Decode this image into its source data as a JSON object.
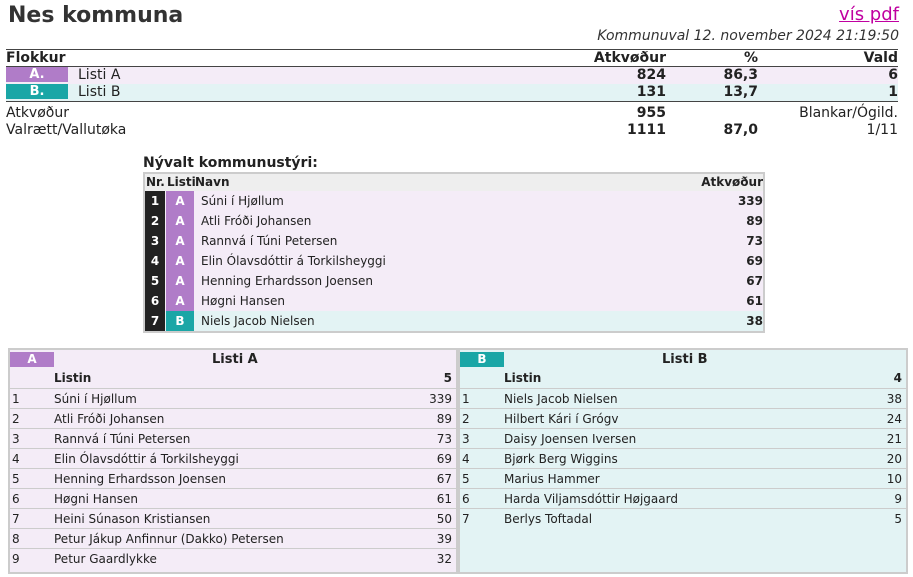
{
  "header": {
    "title": "Nes kommuna",
    "pdf_link": "vís pdf",
    "subtitle": "Kommunuval 12. november 2024 21:19:50"
  },
  "results": {
    "columns": [
      "Flokkur",
      "Atkvøður",
      "%",
      "Vald"
    ],
    "parties": [
      {
        "badge": "A.",
        "name": "Listi A",
        "votes": "824",
        "pct": "86,3",
        "seats": "6",
        "color": "#b07cc8"
      },
      {
        "badge": "B.",
        "name": "Listi B",
        "votes": "131",
        "pct": "13,7",
        "seats": "1",
        "color": "#1aa6a6"
      }
    ],
    "totals": {
      "votes_label": "Atkvøður",
      "votes": "955",
      "blank_label": "Blankar/Ógild.",
      "electorate_label": "Valrætt/Vallutøka",
      "electorate": "1111",
      "turnout": "87,0",
      "blank_ratio": "1/11"
    }
  },
  "council": {
    "title": "Nývalt kommunustýri:",
    "columns": [
      "Nr.",
      "Listi",
      "Navn",
      "Atkvøður"
    ],
    "members": [
      {
        "nr": "1",
        "list": "A",
        "name": "Súni í Hjøllum",
        "votes": "339"
      },
      {
        "nr": "2",
        "list": "A",
        "name": "Atli Fróði Johansen",
        "votes": "89"
      },
      {
        "nr": "3",
        "list": "A",
        "name": "Rannvá í Túni Petersen",
        "votes": "73"
      },
      {
        "nr": "4",
        "list": "A",
        "name": "Elin Ólavsdóttir á Torkilsheyggi",
        "votes": "69"
      },
      {
        "nr": "5",
        "list": "A",
        "name": "Henning Erhardsson Joensen",
        "votes": "67"
      },
      {
        "nr": "6",
        "list": "A",
        "name": "Høgni Hansen",
        "votes": "61"
      },
      {
        "nr": "7",
        "list": "B",
        "name": "Niels Jacob Nielsen",
        "votes": "38"
      }
    ]
  },
  "lists": [
    {
      "badge": "A",
      "title": "Listi A",
      "sub_label": "Listin",
      "sub_value": "5",
      "candidates": [
        {
          "n": "1",
          "name": "Súni í Hjøllum",
          "votes": "339"
        },
        {
          "n": "2",
          "name": "Atli Fróði Johansen",
          "votes": "89"
        },
        {
          "n": "3",
          "name": "Rannvá í Túni Petersen",
          "votes": "73"
        },
        {
          "n": "4",
          "name": "Elin Ólavsdóttir á Torkilsheyggi",
          "votes": "69"
        },
        {
          "n": "5",
          "name": "Henning Erhardsson Joensen",
          "votes": "67"
        },
        {
          "n": "6",
          "name": "Høgni Hansen",
          "votes": "61"
        },
        {
          "n": "7",
          "name": "Heini Súnason Kristiansen",
          "votes": "50"
        },
        {
          "n": "8",
          "name": "Petur Jákup Anfinnur (Dakko) Petersen",
          "votes": "39"
        },
        {
          "n": "9",
          "name": "Petur Gaardlykke",
          "votes": "32"
        }
      ]
    },
    {
      "badge": "B",
      "title": "Listi B",
      "sub_label": "Listin",
      "sub_value": "4",
      "candidates": [
        {
          "n": "1",
          "name": "Niels Jacob Nielsen",
          "votes": "38"
        },
        {
          "n": "2",
          "name": "Hilbert Kári í Grógv",
          "votes": "24"
        },
        {
          "n": "3",
          "name": "Daisy Joensen Iversen",
          "votes": "21"
        },
        {
          "n": "4",
          "name": "Bjørk Berg Wiggins",
          "votes": "20"
        },
        {
          "n": "5",
          "name": "Marius Hammer",
          "votes": "10"
        },
        {
          "n": "6",
          "name": "Harda Viljamsdóttir Højgaard",
          "votes": "9"
        },
        {
          "n": "7",
          "name": "Berlys Toftadal",
          "votes": "5"
        }
      ]
    }
  ]
}
